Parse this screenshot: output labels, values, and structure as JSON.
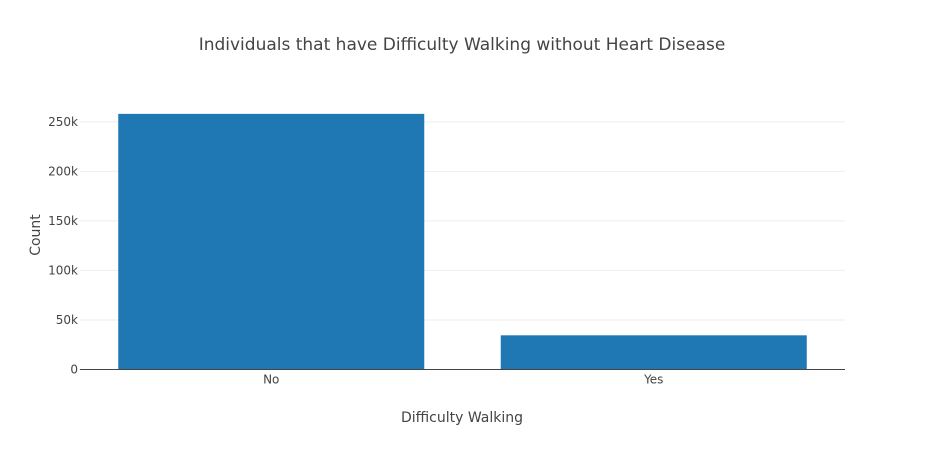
{
  "chart_data": {
    "type": "bar",
    "title": "Individuals that have Difficulty Walking without Heart Disease",
    "xlabel": "Difficulty Walking",
    "ylabel": "Count",
    "categories": [
      "No",
      "Yes"
    ],
    "values": [
      258000,
      34500
    ],
    "ylim": [
      0,
      272000
    ],
    "yticks": [
      0,
      50000,
      100000,
      150000,
      200000,
      250000
    ],
    "ytick_labels": [
      "0",
      "50k",
      "100k",
      "150k",
      "200k",
      "250k"
    ],
    "grid": true,
    "legend": "none",
    "bar_color": "#1f77b4"
  }
}
